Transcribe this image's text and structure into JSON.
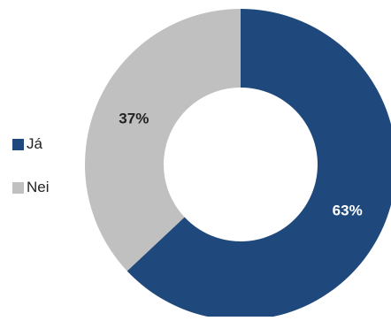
{
  "chart_data": {
    "type": "pie",
    "variant": "donut",
    "title": "",
    "categories": [
      "Já",
      "Nei"
    ],
    "values": [
      63,
      37
    ],
    "labels": [
      "63%",
      "37%"
    ],
    "colors": [
      "#1f497d",
      "#c0c0c0"
    ],
    "label_colors": [
      "#ffffff",
      "#222222"
    ],
    "legend": {
      "position": "left",
      "entries": [
        "Já",
        "Nei"
      ]
    }
  }
}
